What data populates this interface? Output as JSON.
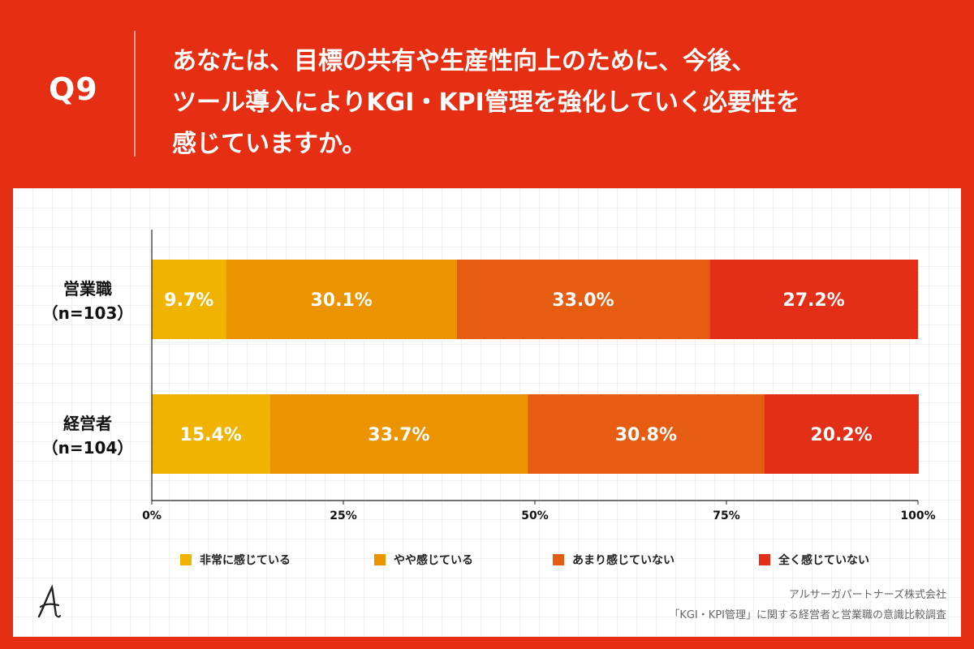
{
  "header": {
    "question_number": "Q9",
    "question_lines": [
      "あなたは、目標の共有や生産性向上のために、今後、",
      "ツール導入によりKGI・KPI管理を強化していく必要性を",
      "感じていますか。"
    ]
  },
  "footer": {
    "logo_icon": "arsagapartners-logo-icon",
    "company": "アルサーガパートナーズ株式会社",
    "survey": "「KGI・KPI管理」に関する経営者と営業職の意識比較調査"
  },
  "colors": {
    "page_background": "#e62e12",
    "series": [
      "#f0b400",
      "#ec9300",
      "#e65c10",
      "#e32f18"
    ]
  },
  "chart_data": {
    "type": "bar",
    "orientation": "horizontal",
    "stacked": true,
    "categories": [
      {
        "label": "営業職",
        "sublabel": "（n=103）"
      },
      {
        "label": "経営者",
        "sublabel": "（n=104）"
      }
    ],
    "series": [
      {
        "name": "非常に感じている",
        "values": [
          9.7,
          15.4
        ],
        "labels": [
          "9.7%",
          "15.4%"
        ]
      },
      {
        "name": "やや感じている",
        "values": [
          30.1,
          33.7
        ],
        "labels": [
          "30.1%",
          "33.7%"
        ]
      },
      {
        "name": "あまり感じていない",
        "values": [
          33.0,
          30.8
        ],
        "labels": [
          "33.0%",
          "30.8%"
        ]
      },
      {
        "name": "全く感じていない",
        "values": [
          27.2,
          20.2
        ],
        "labels": [
          "27.2%",
          "20.2%"
        ]
      }
    ],
    "x_ticks": [
      "0%",
      "25%",
      "50%",
      "75%",
      "100%"
    ],
    "xlim": [
      0,
      100
    ],
    "legend_position": "bottom"
  }
}
